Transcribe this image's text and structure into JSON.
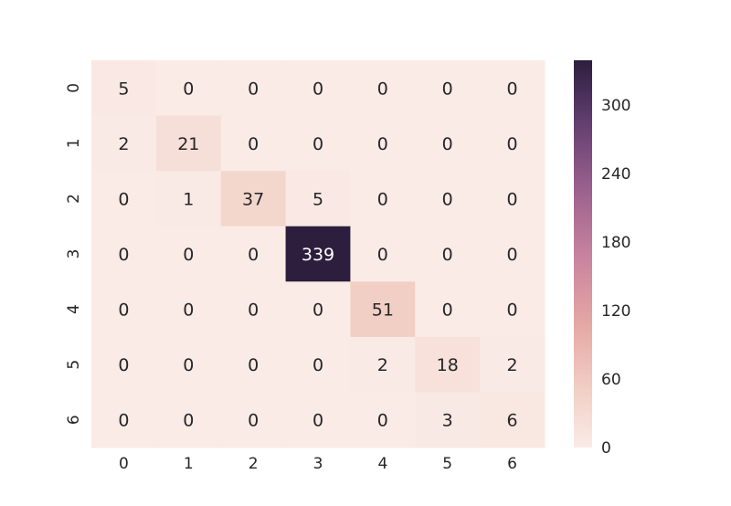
{
  "chart_data": {
    "type": "heatmap",
    "title": "",
    "xlabel": "",
    "ylabel": "",
    "x_categories": [
      "0",
      "1",
      "2",
      "3",
      "4",
      "5",
      "6"
    ],
    "y_categories": [
      "0",
      "1",
      "2",
      "3",
      "4",
      "5",
      "6"
    ],
    "values": [
      [
        5,
        0,
        0,
        0,
        0,
        0,
        0
      ],
      [
        2,
        21,
        0,
        0,
        0,
        0,
        0
      ],
      [
        0,
        1,
        37,
        5,
        0,
        0,
        0
      ],
      [
        0,
        0,
        0,
        339,
        0,
        0,
        0
      ],
      [
        0,
        0,
        0,
        0,
        51,
        0,
        0
      ],
      [
        0,
        0,
        0,
        0,
        2,
        18,
        2
      ],
      [
        0,
        0,
        0,
        0,
        0,
        3,
        6
      ]
    ],
    "vmin": 0,
    "vmax": 339,
    "colorbar": {
      "ticks": [
        0,
        60,
        120,
        180,
        240,
        300
      ],
      "tick_labels": [
        "0",
        "60",
        "120",
        "180",
        "240",
        "300"
      ]
    },
    "colors": {
      "low": "#faebe6",
      "high": "#2d1e3e",
      "text_dark": "#262626",
      "text_light": "#ffffff",
      "tick_text": "#262626"
    },
    "annotations": true,
    "grid": false
  }
}
